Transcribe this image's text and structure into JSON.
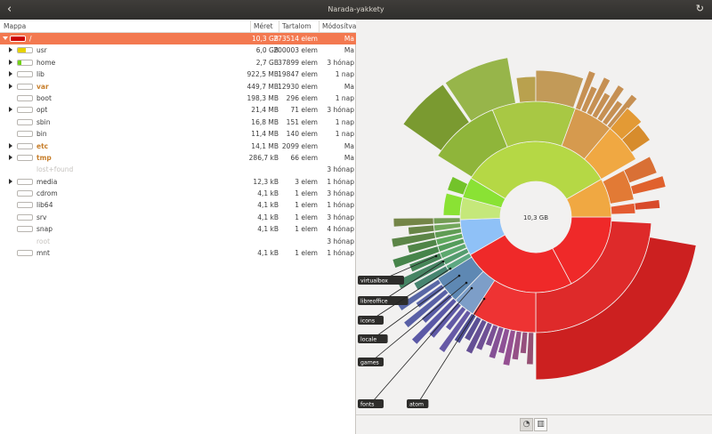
{
  "window": {
    "title": "Narada-yakkety"
  },
  "table": {
    "headers": {
      "folder": "Mappa",
      "size": "Méret",
      "contents": "Tartalom",
      "modified": "Módosítva"
    },
    "rows": [
      {
        "name": "/",
        "size": "10,3 GB",
        "contents": "273514 elem",
        "modified": "Ma",
        "expander": "open",
        "fill": 1.0,
        "color": "#cc0000",
        "selected": true
      },
      {
        "name": "usr",
        "size": "6,0 GB",
        "contents": "200003 elem",
        "modified": "Ma",
        "expander": "closed",
        "fill": 0.58,
        "color": "#e6d200"
      },
      {
        "name": "home",
        "size": "2,7 GB",
        "contents": "37899 elem",
        "modified": "3 hónap",
        "expander": "closed",
        "fill": 0.26,
        "color": "#73d216"
      },
      {
        "name": "lib",
        "size": "922,5 MB",
        "contents": "19847 elem",
        "modified": "1 nap",
        "expander": "closed",
        "fill": 0.0,
        "color": "#73d216"
      },
      {
        "name": "var",
        "size": "449,7 MB",
        "contents": "12930 elem",
        "modified": "Ma",
        "expander": "closed",
        "fill": 0.0,
        "color": "#73d216",
        "style": "orange"
      },
      {
        "name": "boot",
        "size": "198,3 MB",
        "contents": "296 elem",
        "modified": "1 nap",
        "expander": "",
        "fill": 0.0,
        "color": "#73d216"
      },
      {
        "name": "opt",
        "size": "21,4 MB",
        "contents": "71 elem",
        "modified": "3 hónap",
        "expander": "closed",
        "fill": 0.0,
        "color": "#73d216"
      },
      {
        "name": "sbin",
        "size": "16,8 MB",
        "contents": "151 elem",
        "modified": "1 nap",
        "expander": "",
        "fill": 0.0,
        "color": "#73d216"
      },
      {
        "name": "bin",
        "size": "11,4 MB",
        "contents": "140 elem",
        "modified": "1 nap",
        "expander": "",
        "fill": 0.0,
        "color": "#73d216"
      },
      {
        "name": "etc",
        "size": "14,1 MB",
        "contents": "2099 elem",
        "modified": "Ma",
        "expander": "closed",
        "fill": 0.0,
        "color": "#73d216",
        "style": "orange"
      },
      {
        "name": "tmp",
        "size": "286,7 kB",
        "contents": "66 elem",
        "modified": "Ma",
        "expander": "closed",
        "fill": 0.0,
        "color": "#73d216",
        "style": "orange"
      },
      {
        "name": "lost+found",
        "size": "",
        "contents": "",
        "modified": "3 hónap",
        "expander": "",
        "nobar": true,
        "style": "dim"
      },
      {
        "name": "media",
        "size": "12,3 kB",
        "contents": "3 elem",
        "modified": "1 hónap",
        "expander": "closed",
        "fill": 0.0,
        "color": "#73d216"
      },
      {
        "name": "cdrom",
        "size": "4,1 kB",
        "contents": "1 elem",
        "modified": "3 hónap",
        "expander": "",
        "fill": 0.0,
        "color": "#73d216"
      },
      {
        "name": "lib64",
        "size": "4,1 kB",
        "contents": "1 elem",
        "modified": "1 hónap",
        "expander": "",
        "fill": 0.0,
        "color": "#73d216"
      },
      {
        "name": "srv",
        "size": "4,1 kB",
        "contents": "1 elem",
        "modified": "3 hónap",
        "expander": "",
        "fill": 0.0,
        "color": "#73d216"
      },
      {
        "name": "snap",
        "size": "4,1 kB",
        "contents": "1 elem",
        "modified": "4 hónap",
        "expander": "",
        "fill": 0.0,
        "color": "#73d216"
      },
      {
        "name": "root",
        "size": "",
        "contents": "",
        "modified": "3 hónap",
        "expander": "",
        "nobar": true,
        "style": "dim"
      },
      {
        "name": "mnt",
        "size": "4,1 kB",
        "contents": "1 elem",
        "modified": "1 hónap",
        "expander": "",
        "fill": 0.0,
        "color": "#73d216"
      }
    ]
  },
  "chart": {
    "center_label": "10,3 GB",
    "labels": [
      "virtualbox",
      "libreoffice",
      "icons",
      "locale",
      "games",
      "fonts",
      "atom"
    ]
  },
  "toolbar": {
    "rings_icon": "rings-chart-icon",
    "treemap_icon": "treemap-chart-icon"
  }
}
